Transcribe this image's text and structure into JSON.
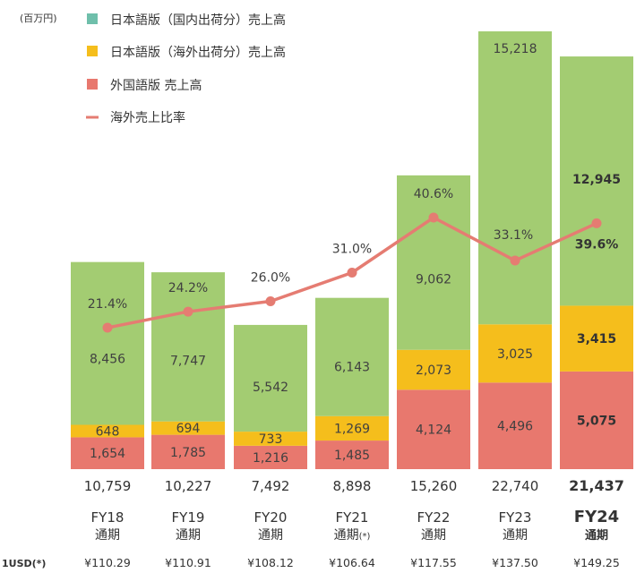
{
  "colors": {
    "domestic": "#a3cc72",
    "overseas": "#f5be1c",
    "foreign": "#e8786e",
    "ratio_line": "#e57c72",
    "legend_domestic_swatch": "#6fbfab"
  },
  "unit_label": "(百万円)",
  "fx_header": "1USD(*)",
  "chart_data": {
    "type": "bar",
    "stacked": true,
    "categories": [
      "FY18",
      "FY19",
      "FY20",
      "FY21",
      "FY22",
      "FY23",
      "FY24"
    ],
    "sub_labels": [
      "通期",
      "通期",
      "通期",
      "通期",
      "通期",
      "通期",
      "通期"
    ],
    "category_note": [
      "",
      "",
      "",
      "(*)",
      "",
      "",
      ""
    ],
    "highlight_index": 6,
    "series": [
      {
        "name": "外国語版 売上高",
        "key": "foreign",
        "values": [
          1654,
          1785,
          1216,
          1485,
          4124,
          4496,
          5075
        ]
      },
      {
        "name": "日本語版（海外出荷分）売上高",
        "key": "overseas",
        "values": [
          648,
          694,
          733,
          1269,
          2073,
          3025,
          3415
        ]
      },
      {
        "name": "日本語版（国内出荷分）売上高",
        "key": "domestic",
        "values": [
          8456,
          7747,
          5542,
          6143,
          9062,
          15218,
          12945
        ]
      }
    ],
    "ratio_series": {
      "name": "海外売上比率",
      "values": [
        21.4,
        24.2,
        26.0,
        31.0,
        40.6,
        33.1,
        39.6
      ],
      "labels": [
        "21.4%",
        "24.2%",
        "26.0%",
        "31.0%",
        "40.6%",
        "33.1%",
        "39.6%"
      ]
    },
    "value_labels": {
      "foreign": [
        "1,654",
        "1,785",
        "1,216",
        "1,485",
        "4,124",
        "4,496",
        "5,075"
      ],
      "overseas": [
        "648",
        "694",
        "733",
        "1,269",
        "2,073",
        "3,025",
        "3,415"
      ],
      "domestic": [
        "8,456",
        "7,747",
        "5,542",
        "6,143",
        "9,062",
        "15,218",
        "12,945"
      ]
    },
    "totals": [
      "10,759",
      "10,227",
      "7,492",
      "8,898",
      "15,260",
      "22,740",
      "21,437"
    ],
    "fx_rates": [
      "¥110.29",
      "¥110.91",
      "¥108.12",
      "¥106.64",
      "¥117.55",
      "¥137.50",
      "¥149.25"
    ],
    "legend": [
      {
        "label": "日本語版（国内出荷分）売上高",
        "kind": "square",
        "color": "#6fbfab"
      },
      {
        "label": "日本語版（海外出荷分）売上高",
        "kind": "square",
        "color": "#f5be1c"
      },
      {
        "label": "外国語版 売上高",
        "kind": "square",
        "color": "#e8786e"
      },
      {
        "label": "海外売上比率",
        "kind": "line",
        "color": "#e57c72"
      }
    ],
    "legend_position": "top-left",
    "grid": false
  }
}
